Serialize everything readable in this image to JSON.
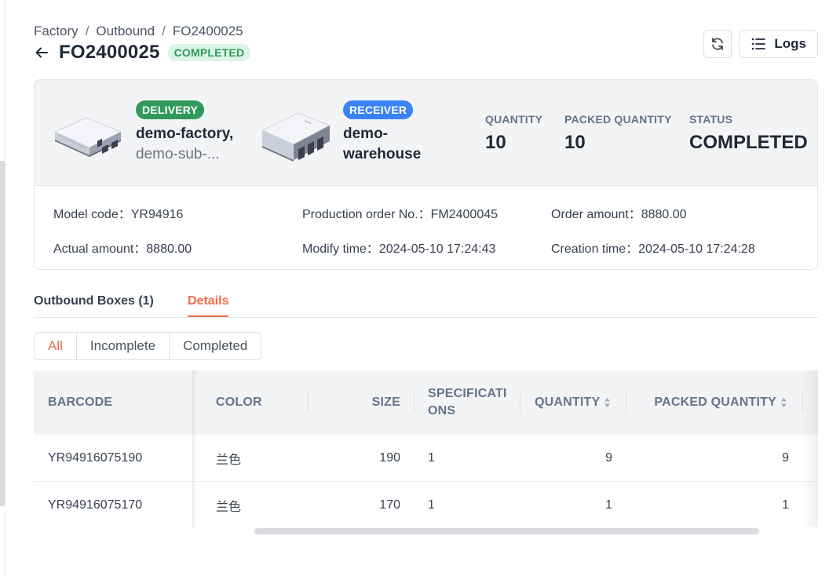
{
  "breadcrumb": [
    "Factory",
    "Outbound",
    "FO2400025"
  ],
  "breadcrumb_sep": "/",
  "title": "FO2400025",
  "status_badge": "COMPLETED",
  "actions": {
    "refresh_icon": "refresh-icon",
    "logs_label": "Logs"
  },
  "delivery": {
    "tag": "DELIVERY",
    "name": "demo-factory,",
    "sub": "demo-sub-..."
  },
  "receiver": {
    "tag": "RECEIVER",
    "name": "demo-",
    "name2": "warehouse"
  },
  "stats": [
    {
      "label": "QUANTITY",
      "value": "10"
    },
    {
      "label": "PACKED QUANTITY",
      "value": "10"
    },
    {
      "label": "STATUS",
      "value": "COMPLETED"
    }
  ],
  "meta": {
    "model_code": "Model code：YR94916",
    "production_order": "Production order No.：FM2400045",
    "order_amount": "Order amount：8880.00",
    "actual_amount": "Actual amount：8880.00",
    "modify_time": "Modify time：2024-05-10 17:24:43",
    "creation_time": "Creation time：2024-05-10 17:24:28"
  },
  "tabs": [
    "Outbound Boxes (1)",
    "Details"
  ],
  "filter": [
    "All",
    "Incomplete",
    "Completed"
  ],
  "table": {
    "columns": [
      "BARCODE",
      "COLOR",
      "SIZE",
      "SPECIFICATI",
      "ONS",
      "QUANTITY",
      "PACKED QUANTITY"
    ],
    "rows": [
      [
        "YR94916075190",
        "兰色",
        "190",
        "1",
        "9",
        "9"
      ],
      [
        "YR94916075170",
        "兰色",
        "170",
        "1",
        "1",
        "1"
      ]
    ]
  },
  "colors": {
    "accent": "#f26b4a",
    "success": "#2f9a5b",
    "info": "#3b82f6"
  }
}
